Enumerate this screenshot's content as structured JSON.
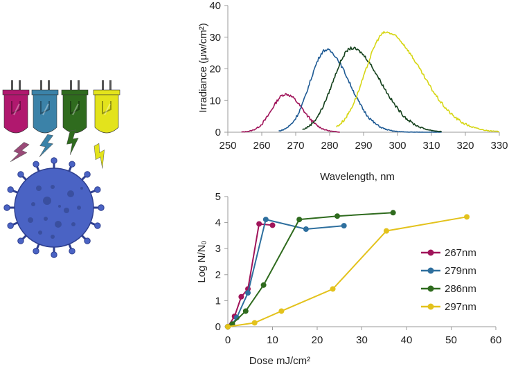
{
  "colors": {
    "magenta": "#a0145a",
    "blue": "#2e6f9e",
    "green": "#2f6b1e",
    "yellow": "#e2e21c",
    "virus_body": "#4a63c4",
    "virus_outline": "#2e3f8f",
    "virus_spots": "#3a4f9f"
  },
  "illustration": {
    "led_colors": [
      "#b0186e",
      "#3b82a8",
      "#2f6b1e",
      "#e3e31c"
    ],
    "bolt_colors": [
      "#9a4a78",
      "#3b82a8",
      "#2f6b1e",
      "#e3e31c"
    ]
  },
  "chart_data": [
    {
      "type": "line",
      "title": "",
      "xlabel": "Wavelength, nm",
      "ylabel": "Irradiance (μw/cm²)",
      "xlim": [
        250,
        330
      ],
      "ylim": [
        0,
        40
      ],
      "xticks": [
        250,
        260,
        270,
        280,
        290,
        300,
        310,
        320,
        330
      ],
      "yticks": [
        0,
        10,
        20,
        30,
        40
      ],
      "legend": "none",
      "series": [
        {
          "peak": 267,
          "amplitude": 12,
          "sigma_left": 4.0,
          "sigma_right": 5.0,
          "range": [
            254,
            283
          ],
          "color": "#a0145a"
        },
        {
          "peak": 279,
          "amplitude": 26,
          "sigma_left": 4.8,
          "sigma_right": 6.8,
          "range": [
            265,
            313
          ],
          "color": "#1e5a94"
        },
        {
          "peak": 286.5,
          "amplitude": 26.5,
          "sigma_left": 5.5,
          "sigma_right": 8.5,
          "range": [
            272,
            313
          ],
          "color": "#123f1a"
        },
        {
          "peak": 296.5,
          "amplitude": 31.5,
          "sigma_left": 6.0,
          "sigma_right": 10.5,
          "range": [
            282,
            330
          ],
          "color": "#d6d614"
        }
      ]
    },
    {
      "type": "line",
      "title": "",
      "xlabel": "Dose mJ/cm²",
      "ylabel": "Log N/N₀",
      "xlim": [
        0,
        60
      ],
      "ylim": [
        0,
        5
      ],
      "xticks": [
        0,
        10,
        20,
        30,
        40,
        50,
        60
      ],
      "yticks": [
        0,
        1,
        2,
        3,
        4,
        5
      ],
      "legend": "right",
      "series": [
        {
          "name": "267nm",
          "color": "#a0145a",
          "x": [
            0,
            1.5,
            3,
            4.5,
            7,
            10
          ],
          "y": [
            0,
            0.4,
            1.15,
            1.45,
            3.95,
            3.9
          ]
        },
        {
          "name": "279nm",
          "color": "#2e6f9e",
          "x": [
            0,
            1,
            2,
            4.5,
            8.5,
            17.5,
            26
          ],
          "y": [
            0,
            0.1,
            0.35,
            1.3,
            4.12,
            3.75,
            3.88
          ]
        },
        {
          "name": "286nm",
          "color": "#2f6b1e",
          "x": [
            0,
            1,
            4,
            8,
            16,
            24.5,
            37
          ],
          "y": [
            0,
            0.1,
            0.6,
            1.6,
            4.12,
            4.25,
            4.38
          ]
        },
        {
          "name": "297nm",
          "color": "#e3c21c",
          "x": [
            0,
            6,
            12,
            23.5,
            35.5,
            53.5
          ],
          "y": [
            0,
            0.15,
            0.6,
            1.45,
            3.68,
            4.22
          ]
        }
      ]
    }
  ]
}
